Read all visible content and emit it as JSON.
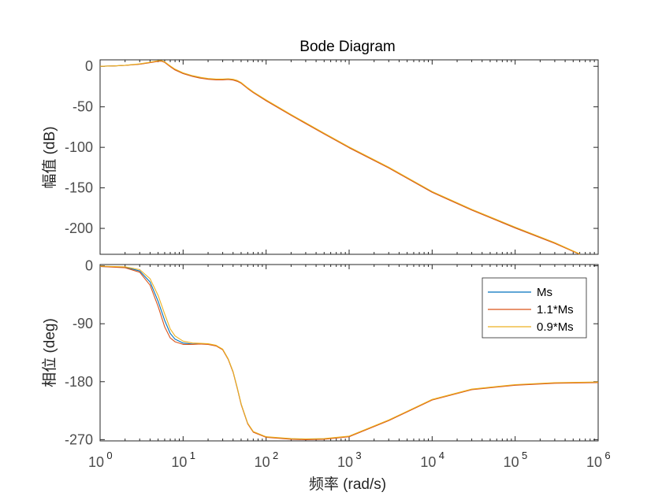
{
  "chart_data": {
    "type": "line",
    "title": "Bode Diagram",
    "xlabel": "频率  (rad/s)",
    "xscale": "log",
    "xlim": [
      1,
      1000000
    ],
    "xticks": [
      {
        "value": 1,
        "base": "10",
        "exp": "0"
      },
      {
        "value": 10,
        "base": "10",
        "exp": "1"
      },
      {
        "value": 100,
        "base": "10",
        "exp": "2"
      },
      {
        "value": 1000,
        "base": "10",
        "exp": "3"
      },
      {
        "value": 10000,
        "base": "10",
        "exp": "4"
      },
      {
        "value": 100000,
        "base": "10",
        "exp": "5"
      },
      {
        "value": 1000000,
        "base": "10",
        "exp": "6"
      }
    ],
    "grid": false,
    "colors": {
      "Ms": "#0072bd",
      "1.1*Ms": "#d95319",
      "0.9*Ms": "#edb120"
    },
    "panels": [
      {
        "name": "magnitude",
        "ylabel": "幅值 (dB)",
        "ylim": [
          -232,
          8
        ],
        "yticks": [
          0,
          -50,
          -100,
          -150,
          -200
        ],
        "yticklabels": [
          "0",
          "-50",
          "-100",
          "-150",
          "-200"
        ],
        "series": [
          {
            "name": "Ms",
            "x": [
              1,
              1.5,
              2,
              3,
              4,
              5,
              5.5,
              6,
              7,
              8,
              10,
              13,
              16,
              20,
              25,
              30,
              35,
              40,
              45,
              50,
              60,
              70,
              100,
              200,
              500,
              1000,
              3000,
              10000,
              30000,
              100000,
              300000,
              600000
            ],
            "y": [
              0,
              0.5,
              1.2,
              2.8,
              4.8,
              6.5,
              6.6,
              5,
              0,
              -4,
              -8.5,
              -12,
              -14,
              -15.5,
              -16.2,
              -16.2,
              -15.8,
              -16.5,
              -18,
              -20.5,
              -27,
              -32,
              -42,
              -60,
              -83,
              -100,
              -125,
              -155,
              -177,
              -199,
              -218,
              -232
            ]
          },
          {
            "name": "1.1*Ms",
            "x": [
              1,
              1.5,
              2,
              3,
              4,
              5,
              5.5,
              6,
              7,
              8,
              10,
              13,
              16,
              20,
              25,
              30,
              35,
              40,
              45,
              50,
              60,
              70,
              100,
              200,
              500,
              1000,
              3000,
              10000,
              30000,
              100000,
              300000,
              600000
            ],
            "y": [
              0,
              0.5,
              1.1,
              2.6,
              4.5,
              6.2,
              6.3,
              4.8,
              -0.5,
              -4.5,
              -9,
              -12.5,
              -14.5,
              -16,
              -16.7,
              -16.7,
              -16.3,
              -17,
              -18.5,
              -21,
              -27.5,
              -32.5,
              -42.5,
              -60.5,
              -83.5,
              -100.5,
              -125.5,
              -155.5,
              -177.5,
              -199.5,
              -218.5,
              -232
            ]
          },
          {
            "name": "0.9*Ms",
            "x": [
              1,
              1.5,
              2,
              3,
              4,
              5,
              5.5,
              6,
              7,
              8,
              10,
              13,
              16,
              20,
              25,
              30,
              35,
              40,
              45,
              50,
              60,
              70,
              100,
              200,
              500,
              1000,
              3000,
              10000,
              30000,
              100000,
              300000,
              600000
            ],
            "y": [
              0,
              0.5,
              1.3,
              3,
              5.1,
              6.8,
              7,
              5.5,
              0.5,
              -3.5,
              -8,
              -11.5,
              -13.5,
              -15,
              -15.7,
              -15.7,
              -15.3,
              -16,
              -17.5,
              -20,
              -26.5,
              -31.5,
              -41.5,
              -59.5,
              -82.5,
              -99.5,
              -124.5,
              -154.5,
              -176.5,
              -198.5,
              -217.5,
              -231.5
            ]
          }
        ]
      },
      {
        "name": "phase",
        "ylabel": "相位 (deg)",
        "ylim": [
          -272,
          2
        ],
        "yticks": [
          0,
          -90,
          -180,
          -270
        ],
        "yticklabels": [
          "0",
          "-90",
          "-180",
          "-270"
        ],
        "legend": {
          "placement": "top-right",
          "entries": [
            "Ms",
            "1.1*Ms",
            "0.9*Ms"
          ]
        },
        "series": [
          {
            "name": "Ms",
            "x": [
              1,
              2,
              3,
              4,
              5,
              6,
              7,
              8,
              10,
              13,
              16,
              20,
              25,
              30,
              35,
              40,
              45,
              50,
              60,
              70,
              100,
              200,
              300,
              500,
              1000,
              3000,
              10000,
              30000,
              100000,
              300000,
              1000000
            ],
            "y": [
              -1,
              -2,
              -8,
              -25,
              -55,
              -85,
              -105,
              -114,
              -120,
              -121.5,
              -121,
              -121.5,
              -124,
              -130,
              -145,
              -165,
              -190,
              -215,
              -245,
              -258,
              -266,
              -269,
              -269.5,
              -269,
              -265,
              -240,
              -208,
              -192,
              -185,
              -182,
              -181
            ]
          },
          {
            "name": "1.1*Ms",
            "x": [
              1,
              2,
              3,
              4,
              5,
              6,
              7,
              8,
              10,
              13,
              16,
              20,
              25,
              30,
              35,
              40,
              45,
              50,
              60,
              70,
              100,
              200,
              300,
              500,
              1000,
              3000,
              10000,
              30000,
              100000,
              300000,
              1000000
            ],
            "y": [
              -1,
              -3,
              -10,
              -30,
              -63,
              -95,
              -112,
              -118,
              -122,
              -122,
              -121.5,
              -122,
              -124.5,
              -130.5,
              -145.5,
              -165.5,
              -190.5,
              -215.5,
              -245.5,
              -258.5,
              -266.5,
              -269.5,
              -270,
              -269.5,
              -265.5,
              -240.5,
              -208.5,
              -192.5,
              -185.5,
              -182.5,
              -181.5
            ]
          },
          {
            "name": "0.9*Ms",
            "x": [
              1,
              2,
              3,
              4,
              5,
              6,
              7,
              8,
              10,
              13,
              16,
              20,
              25,
              30,
              35,
              40,
              45,
              50,
              60,
              70,
              100,
              200,
              300,
              500,
              1000,
              3000,
              10000,
              30000,
              100000,
              300000,
              1000000
            ],
            "y": [
              -0.5,
              -1.5,
              -6,
              -20,
              -46,
              -75,
              -98,
              -109,
              -117,
              -120,
              -120.5,
              -121,
              -123.5,
              -129.5,
              -144.5,
              -164.5,
              -189.5,
              -214.5,
              -244.5,
              -257.5,
              -265.5,
              -268.5,
              -269,
              -268.5,
              -264.5,
              -239.5,
              -207.5,
              -191.5,
              -184.5,
              -181.5,
              -180.5
            ]
          }
        ]
      }
    ]
  }
}
